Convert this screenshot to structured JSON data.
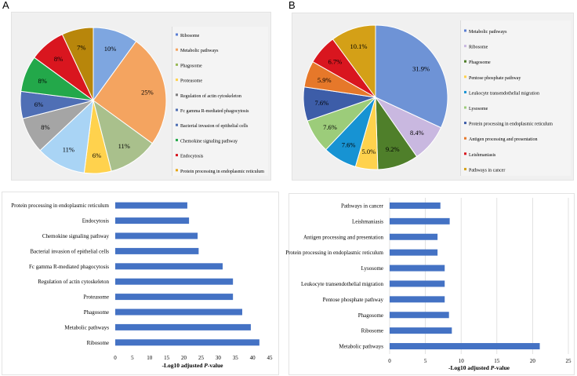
{
  "panels": {
    "a": "A",
    "b": "B"
  },
  "colors": {
    "bar": "#4472c4",
    "grid": "#dadada",
    "pie_edge": "#ffffff"
  },
  "chart_data": [
    {
      "id": "A-pie",
      "type": "pie",
      "labels": [
        "Ribosome",
        "Metabolic pathways",
        "Phagosome",
        "Proteasome",
        "Regulation of actin cytoskeleton",
        "Fc gamma R-mediated phagocytosis",
        "Bacterial invasion of epithelial cells",
        "Chemokine signaling pathway",
        "Endocytosis",
        "Protein processing in endoplasmic reticulum"
      ],
      "values": [
        10,
        25,
        11,
        6,
        11,
        8,
        6,
        8,
        8,
        7
      ],
      "value_labels": [
        "10%",
        "25%",
        "11%",
        "6%",
        "11%",
        "8%",
        "6%",
        "8%",
        "8%",
        "7%"
      ],
      "slice_colors": [
        "#7ea6e0",
        "#f4a460",
        "#a9c08c",
        "#ffd24d",
        "#a9d4f5",
        "#a5a5a5",
        "#4f6fb5",
        "#23a84a",
        "#d9161f",
        "#b8860b"
      ],
      "legend_colors": [
        "#5b7fd4",
        "#f4a460",
        "#9bbb59",
        "#ffd24d",
        "#7f7f7f",
        "#4f6fb5",
        "#4f6fb5",
        "#23a84a",
        "#d9161f",
        "#e6a817"
      ],
      "legend": "right"
    },
    {
      "id": "B-pie",
      "type": "pie",
      "labels": [
        "Metabolic pathways",
        "Ribosome",
        "Phagosome",
        "Pentose phosphate pathway",
        "Leukocyte transendothelial migration",
        "Lysosome",
        "Protein processing in endoplasmic reticulum",
        "Antigen processing and presentation",
        "Leishmaniasis",
        "Pathways in cancer"
      ],
      "values": [
        31.9,
        8.4,
        9.2,
        5.0,
        7.6,
        7.6,
        7.6,
        5.9,
        6.7,
        10.1
      ],
      "value_labels": [
        "31.9%",
        "8.4%",
        "9.2%",
        "5.0%",
        "7.6%",
        "7.6%",
        "7.6%",
        "5.9%",
        "6.7%",
        "10.1%"
      ],
      "slice_colors": [
        "#6e93d6",
        "#c9b8e0",
        "#4f7f2a",
        "#ffd24d",
        "#1793d3",
        "#9ccc7a",
        "#3d5da8",
        "#e6782a",
        "#d9161f",
        "#d4a017"
      ],
      "legend_colors": [
        "#5b7fd4",
        "#c9b8e0",
        "#4f7f2a",
        "#ffd24d",
        "#1793d3",
        "#9ccc7a",
        "#3d5da8",
        "#e6782a",
        "#d9161f",
        "#d4a017"
      ],
      "legend": "right"
    },
    {
      "id": "A-bar",
      "type": "bar",
      "orientation": "horizontal",
      "categories": [
        "Protein processing in endoplasmic reticulum",
        "Endocytosis",
        "Chemokine signaling pathway",
        "Bacterial invasion of epithelial cells",
        "Fc gamma R-mediated phagocytosis",
        "Regulation of actin cytoskeleton",
        "Proteasome",
        "Phagosome",
        "Metabolic pathways",
        "Ribosome"
      ],
      "values": [
        21,
        21.5,
        24,
        24.3,
        31.3,
        34.3,
        34.3,
        37,
        39.5,
        42
      ],
      "xlabel_prefix": "-Log10 adjusted ",
      "xlabel_italic": "P",
      "xlabel_suffix": "-value",
      "xlim": [
        0,
        45
      ],
      "xticks": [
        0,
        5,
        10,
        15,
        20,
        25,
        30,
        35,
        40,
        45
      ],
      "grid": false
    },
    {
      "id": "B-bar",
      "type": "bar",
      "orientation": "horizontal",
      "categories": [
        "Pathways in cancer",
        "Leishmaniasis",
        "Antigen processing and presentation",
        "Protein processing in endoplasmic reticulum",
        "Lysosome",
        "Leukocyte transendothelial migration",
        "Pentose phosphate pathway",
        "Phagosome",
        "Ribosome",
        "Metabolic pathways"
      ],
      "values": [
        7.1,
        8.4,
        6.7,
        6.7,
        7.7,
        7.7,
        7.7,
        8.3,
        8.7,
        21
      ],
      "xlabel_prefix": "-Log10 adjusted ",
      "xlabel_italic": "P",
      "xlabel_suffix": "-value",
      "xlim": [
        0,
        25
      ],
      "xticks": [
        0,
        5,
        10,
        15,
        20,
        25
      ],
      "grid": true
    }
  ]
}
